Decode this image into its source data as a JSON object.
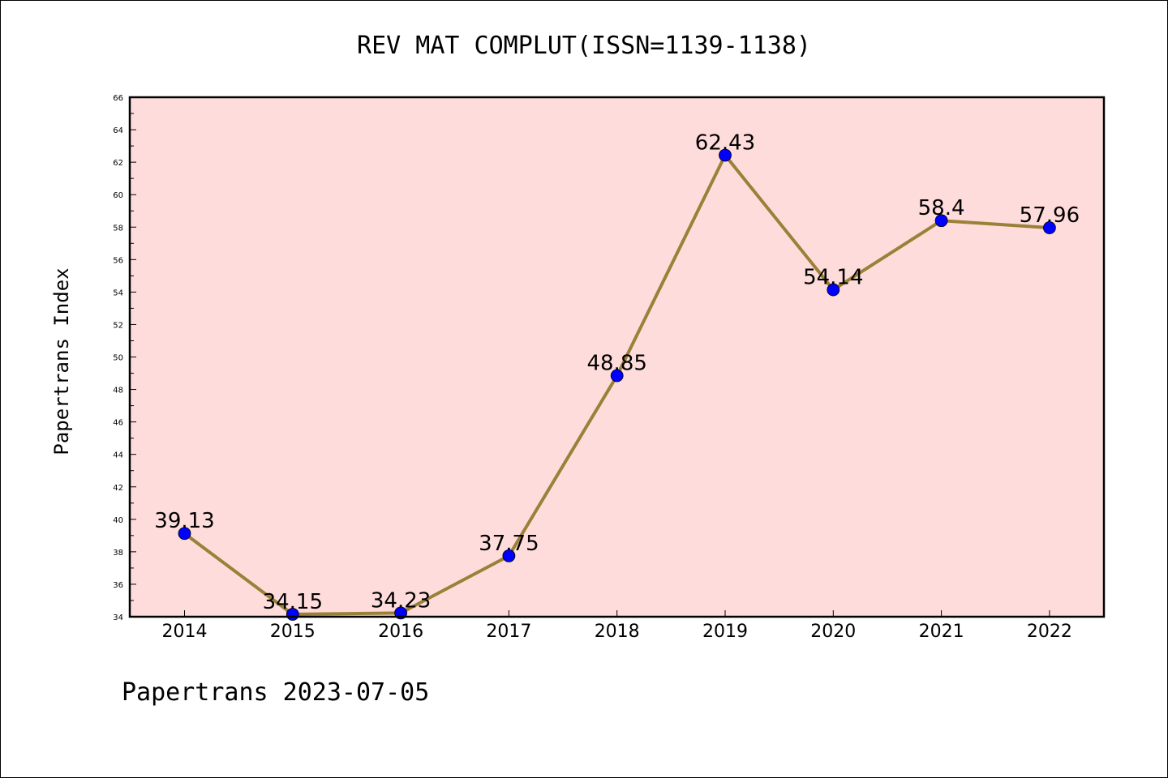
{
  "chart_data": {
    "type": "line",
    "title": "REV MAT COMPLUT(ISSN=1139-1138)",
    "xlabel": "",
    "ylabel": "Papertrans Index",
    "footer": "Papertrans 2023-07-05",
    "categories": [
      "2014",
      "2015",
      "2016",
      "2017",
      "2018",
      "2019",
      "2020",
      "2021",
      "2022"
    ],
    "series": [
      {
        "values": [
          39.13,
          34.15,
          34.23,
          37.75,
          48.85,
          62.43,
          54.14,
          58.4,
          57.96
        ],
        "labels": [
          "39.13",
          "34.15",
          "34.23",
          "37.75",
          "48.85",
          "62.43",
          "54.14",
          "58.4",
          "57.96"
        ]
      }
    ],
    "ylim": [
      34,
      66
    ],
    "yticks": [
      "34",
      "36",
      "38",
      "40",
      "42",
      "44",
      "46",
      "48",
      "50",
      "52",
      "54",
      "56",
      "58",
      "60",
      "62",
      "64",
      "66"
    ],
    "grid": false,
    "colors": {
      "plot_background": "#ffdcdc",
      "line": "#9b8038",
      "marker": "#0000ff"
    }
  }
}
